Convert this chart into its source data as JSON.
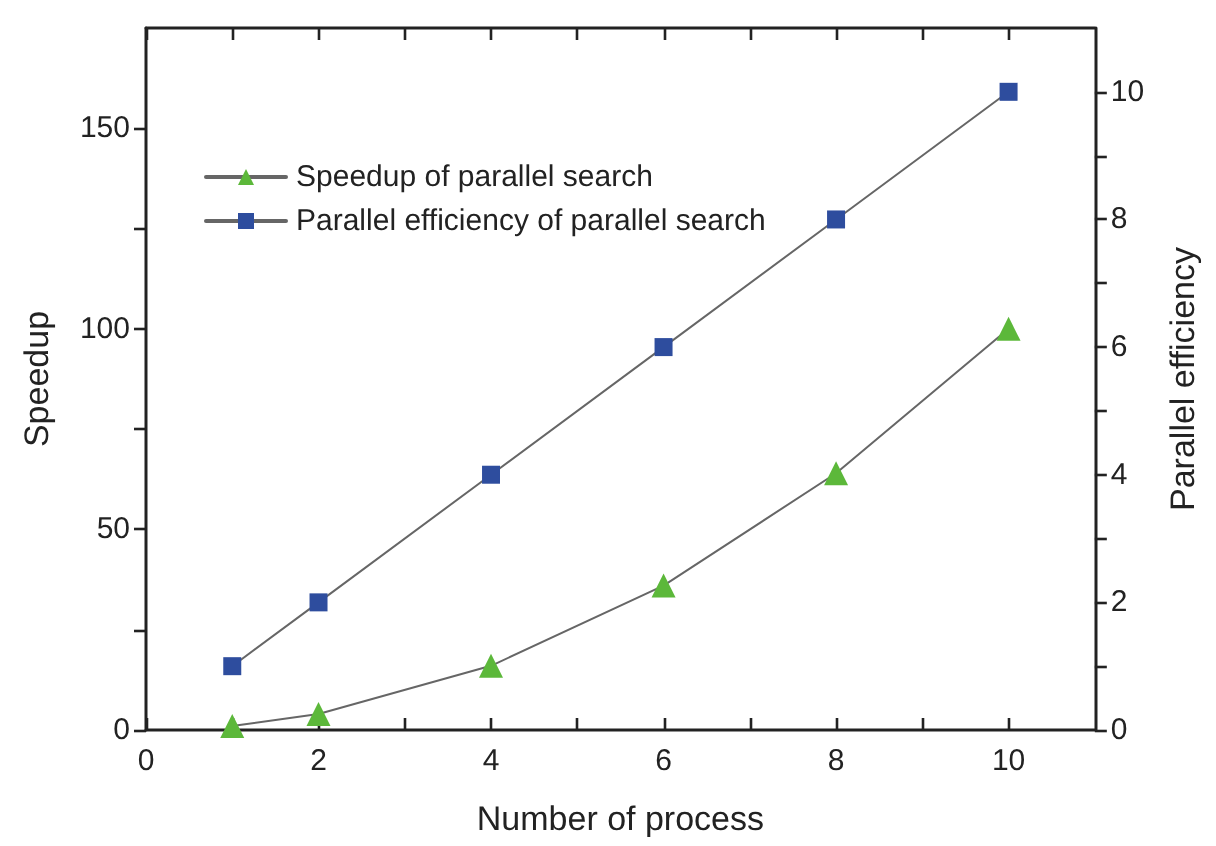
{
  "chart_data": {
    "type": "line",
    "xlabel": "Number of process",
    "ylabel": "Speedup",
    "y2label": "Parallel efficiency",
    "x": [
      1,
      2,
      4,
      6,
      8,
      10
    ],
    "series": [
      {
        "name": "Speedup of parallel search",
        "color": "#5cb83a",
        "marker": "triangle",
        "values": [
          1,
          4,
          16,
          36,
          64,
          100
        ]
      },
      {
        "name": "Parallel efficiency of parallel search",
        "color": "#2e4d9e",
        "marker": "square",
        "axis": "y2",
        "values": [
          1,
          2,
          4,
          6,
          8,
          10
        ]
      }
    ],
    "xlim": [
      0,
      11
    ],
    "xticks": [
      0,
      {
        "value": 1,
        "label": null
      },
      2,
      {
        "value": 3,
        "label": null
      },
      4,
      {
        "value": 5,
        "label": null
      },
      6,
      {
        "value": 7,
        "label": null
      },
      8,
      {
        "value": 9,
        "label": null
      },
      10
    ],
    "ylim": [
      0,
      175
    ],
    "yticks": [
      0,
      {
        "value": 25,
        "label": null
      },
      50,
      {
        "value": 75,
        "label": null
      },
      100,
      {
        "value": 125,
        "label": null
      },
      150
    ],
    "y2lim": [
      0,
      11
    ],
    "y2ticks": [
      0,
      {
        "value": 1,
        "label": null
      },
      2,
      {
        "value": 3,
        "label": null
      },
      4,
      {
        "value": 5,
        "label": null
      },
      6,
      {
        "value": 7,
        "label": null
      },
      8,
      {
        "value": 9,
        "label": null
      },
      10
    ],
    "legend": "top left"
  }
}
